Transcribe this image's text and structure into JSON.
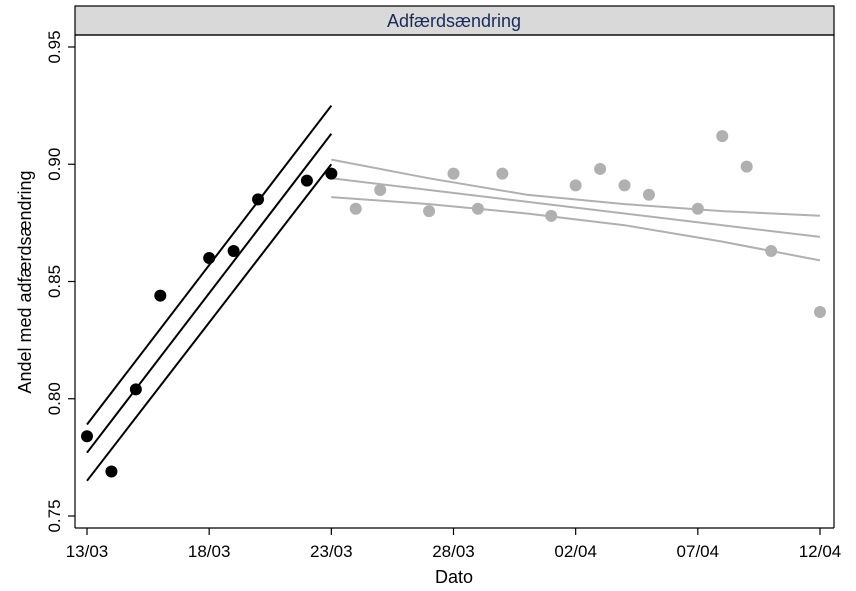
{
  "chart_data": {
    "type": "scatter",
    "title": "Adfærdsændring",
    "xlabel": "Dato",
    "ylabel": "Andel med adfærdsændring",
    "ylim": [
      0.75,
      0.95
    ],
    "yticks": [
      "0.75",
      "0.80",
      "0.85",
      "0.90",
      "0.95"
    ],
    "xlim": [
      "2020-03-13",
      "2020-04-12"
    ],
    "xticks": [
      {
        "date": "2020-03-13",
        "label": "13/03"
      },
      {
        "date": "2020-03-18",
        "label": "18/03"
      },
      {
        "date": "2020-03-23",
        "label": "23/03"
      },
      {
        "date": "2020-03-28",
        "label": "28/03"
      },
      {
        "date": "2020-04-02",
        "label": "02/04"
      },
      {
        "date": "2020-04-07",
        "label": "07/04"
      },
      {
        "date": "2020-04-12",
        "label": "12/04"
      }
    ],
    "grid": false,
    "colors": {
      "phase1": "#000000",
      "phase2": "#b0b0b0",
      "panel_header": "#d9d9d9",
      "title_text": "#1a2a5a"
    },
    "series": [
      {
        "color": "#000000",
        "points": [
          {
            "x": "2020-03-13",
            "y": 0.784
          },
          {
            "x": "2020-03-14",
            "y": 0.769
          },
          {
            "x": "2020-03-15",
            "y": 0.804
          },
          {
            "x": "2020-03-16",
            "y": 0.844
          },
          {
            "x": "2020-03-18",
            "y": 0.86
          },
          {
            "x": "2020-03-19",
            "y": 0.863
          },
          {
            "x": "2020-03-20",
            "y": 0.885
          },
          {
            "x": "2020-03-22",
            "y": 0.893
          },
          {
            "x": "2020-03-23",
            "y": 0.896
          }
        ],
        "fit": {
          "start": "2020-03-13",
          "end": "2020-03-23",
          "mid": [
            0.777,
            0.913
          ],
          "upper": [
            0.789,
            0.925
          ],
          "lower": [
            0.765,
            0.9
          ]
        }
      },
      {
        "color": "#b0b0b0",
        "points": [
          {
            "x": "2020-03-24",
            "y": 0.881
          },
          {
            "x": "2020-03-25",
            "y": 0.889
          },
          {
            "x": "2020-03-27",
            "y": 0.88
          },
          {
            "x": "2020-03-28",
            "y": 0.896
          },
          {
            "x": "2020-03-29",
            "y": 0.881
          },
          {
            "x": "2020-03-30",
            "y": 0.896
          },
          {
            "x": "2020-04-01",
            "y": 0.878
          },
          {
            "x": "2020-04-02",
            "y": 0.891
          },
          {
            "x": "2020-04-03",
            "y": 0.898
          },
          {
            "x": "2020-04-04",
            "y": 0.891
          },
          {
            "x": "2020-04-05",
            "y": 0.887
          },
          {
            "x": "2020-04-07",
            "y": 0.881
          },
          {
            "x": "2020-04-08",
            "y": 0.912
          },
          {
            "x": "2020-04-09",
            "y": 0.899
          },
          {
            "x": "2020-04-10",
            "y": 0.863
          },
          {
            "x": "2020-04-12",
            "y": 0.837
          }
        ],
        "fit": {
          "start": "2020-03-23",
          "end": "2020-04-12",
          "mid": [
            [
              0.894,
              0.889,
              0.884,
              0.879,
              0.874,
              0.869
            ],
            "curve"
          ],
          "upper_curve": [
            0.902,
            0.894,
            0.887,
            0.883,
            0.88,
            0.878
          ],
          "mid_curve": [
            0.894,
            0.889,
            0.884,
            0.879,
            0.874,
            0.869
          ],
          "lower_curve": [
            0.886,
            0.883,
            0.879,
            0.874,
            0.867,
            0.859
          ],
          "curve_dates": [
            "2020-03-23",
            "2020-03-27",
            "2020-03-31",
            "2020-04-04",
            "2020-04-08",
            "2020-04-12"
          ]
        }
      }
    ]
  }
}
